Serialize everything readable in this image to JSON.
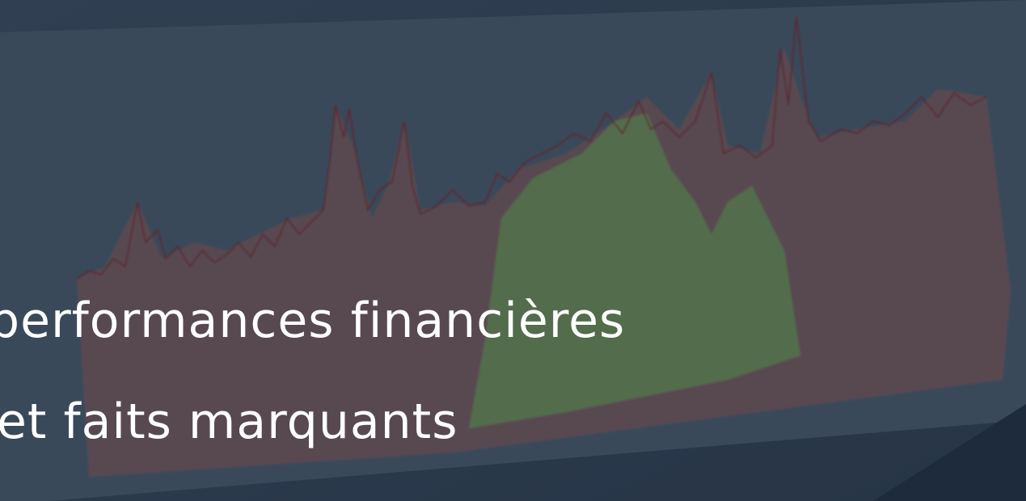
{
  "hero": {
    "title_lines": [
      "performances financières",
      "et faits marquants"
    ]
  }
}
